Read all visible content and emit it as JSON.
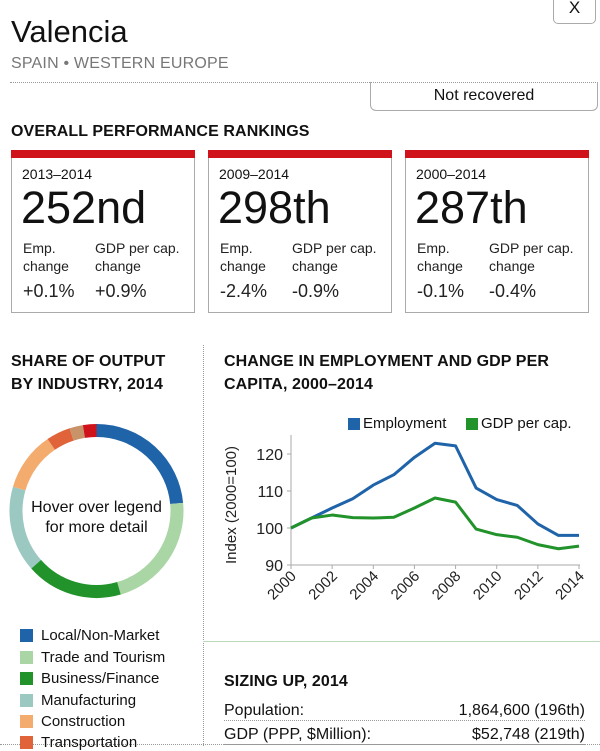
{
  "close_label": "X",
  "header": {
    "title": "Valencia",
    "subtitle": "SPAIN • WESTERN EUROPE",
    "status": "Not recovered"
  },
  "rankings": {
    "title": "OVERALL PERFORMANCE RANKINGS",
    "emp_label_1": "Emp.",
    "emp_label_2": "change",
    "gdp_label_1": "GDP per cap.",
    "gdp_label_2": "change",
    "cards": [
      {
        "period": "2013–2014",
        "rank": "252nd",
        "emp": "+0.1%",
        "gdp": "+0.9%"
      },
      {
        "period": "2009–2014",
        "rank": "298th",
        "emp": "-2.4%",
        "gdp": "-0.9%"
      },
      {
        "period": "2000–2014",
        "rank": "287th",
        "emp": "-0.1%",
        "gdp": "-0.4%"
      }
    ]
  },
  "colors": {
    "accent_red": "#d0121b",
    "employment": "#1f63a8",
    "gdp": "#22922b"
  },
  "industry": {
    "title_line1": "SHARE OF OUTPUT",
    "title_line2": "BY INDUSTRY, 2014",
    "center_line1": "Hover over legend",
    "center_line2": "for more detail",
    "legend": [
      {
        "label": "Local/Non-Market",
        "color": "#1f63a8"
      },
      {
        "label": "Trade and Tourism",
        "color": "#a9d6a4"
      },
      {
        "label": "Business/Finance",
        "color": "#22922b"
      },
      {
        "label": "Manufacturing",
        "color": "#9cc8c2"
      },
      {
        "label": "Construction",
        "color": "#f4ab6e"
      },
      {
        "label": "Transportation",
        "color": "#e0633a"
      }
    ]
  },
  "line_chart": {
    "title_line1": "CHANGE IN EMPLOYMENT AND GDP PER",
    "title_line2": "CAPITA, 2000–2014",
    "legend_employment": "Employment",
    "legend_gdp": "GDP per cap."
  },
  "sizing": {
    "title": "SIZING UP, 2014",
    "rows": [
      {
        "label": "Population:",
        "value": "1,864,600 (196th)"
      },
      {
        "label": "GDP (PPP, $Million):",
        "value": "$52,748 (219th)"
      }
    ]
  },
  "chart_data": [
    {
      "type": "pie",
      "title": "SHARE OF OUTPUT BY INDUSTRY, 2014",
      "donut": true,
      "slices": [
        {
          "name": "Local/Non-Market",
          "share": 23.5,
          "color": "#1f63a8"
        },
        {
          "name": "Trade and Tourism",
          "share": 22.0,
          "color": "#a9d6a4"
        },
        {
          "name": "Business/Finance",
          "share": 18.0,
          "color": "#22922b"
        },
        {
          "name": "Manufacturing",
          "share": 16.0,
          "color": "#9cc8c2"
        },
        {
          "name": "Construction",
          "share": 11.0,
          "color": "#f4ab6e"
        },
        {
          "name": "Transportation",
          "share": 4.5,
          "color": "#e0633a"
        },
        {
          "name": null,
          "share": 2.5,
          "color": "#c9936a"
        },
        {
          "name": null,
          "share": 2.5,
          "color": "#d0121b"
        }
      ]
    },
    {
      "type": "line",
      "title": "CHANGE IN EMPLOYMENT AND GDP PER CAPITA, 2000–2014",
      "xlabel": "",
      "ylabel": "Index (2000=100)",
      "x": [
        2000,
        2001,
        2002,
        2003,
        2004,
        2005,
        2006,
        2007,
        2008,
        2009,
        2010,
        2011,
        2012,
        2013,
        2014
      ],
      "xticks": [
        "2000",
        "2002",
        "2004",
        "2006",
        "2008",
        "2010",
        "2012",
        "2014"
      ],
      "yticks": [
        "90",
        "100",
        "110",
        "120"
      ],
      "ylim": [
        90,
        124
      ],
      "xlim": [
        2000,
        2014
      ],
      "legend": "top-right",
      "grid": false,
      "series": [
        {
          "name": "Employment",
          "color": "#1f63a8",
          "values": [
            100,
            102.7,
            105.4,
            107.9,
            111.6,
            114.4,
            119.1,
            122.9,
            122.2,
            110.8,
            107.7,
            106.1,
            101.1,
            98.0,
            98.0
          ]
        },
        {
          "name": "GDP per cap.",
          "color": "#22922b",
          "values": [
            100,
            102.7,
            103.5,
            102.8,
            102.7,
            102.9,
            105.4,
            108.1,
            107.0,
            99.7,
            98.2,
            97.5,
            95.5,
            94.4,
            95.1
          ]
        }
      ]
    }
  ]
}
